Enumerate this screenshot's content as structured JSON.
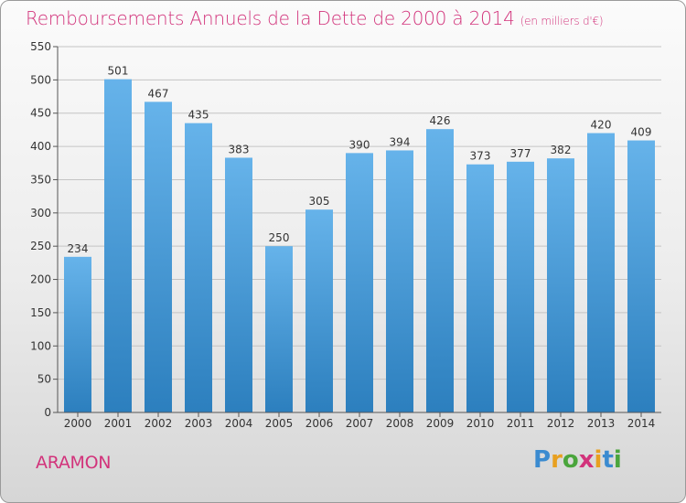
{
  "title": "Remboursements Annuels de la Dette de 2000 à 2014",
  "subtitle": "(en milliers d'€)",
  "commune": "ARAMON",
  "logo": {
    "letters": [
      "P",
      "r",
      "o",
      "x",
      "i",
      "t",
      "i"
    ],
    "colors": [
      "#3b8bd0",
      "#e8a020",
      "#4aa53c",
      "#d2337b",
      "#e8a020",
      "#3b8bd0",
      "#4aa53c"
    ]
  },
  "colors": {
    "accent": "#d2337b",
    "bar_top": "#66b3ea",
    "bar_bottom": "#2c7fbe"
  },
  "chart_data": {
    "type": "bar",
    "title": "Remboursements Annuels de la Dette de 2000 à 2014",
    "unit": "(en milliers d'€)",
    "xlabel": "",
    "ylabel": "",
    "categories": [
      "2000",
      "2001",
      "2002",
      "2003",
      "2004",
      "2005",
      "2006",
      "2007",
      "2008",
      "2009",
      "2010",
      "2011",
      "2012",
      "2013",
      "2014"
    ],
    "values": [
      234,
      501,
      467,
      435,
      383,
      250,
      305,
      390,
      394,
      426,
      373,
      377,
      382,
      420,
      409
    ],
    "ylim": [
      0,
      550
    ],
    "yticks": [
      0,
      50,
      100,
      150,
      200,
      250,
      300,
      350,
      400,
      450,
      500,
      550
    ],
    "grid": true
  }
}
